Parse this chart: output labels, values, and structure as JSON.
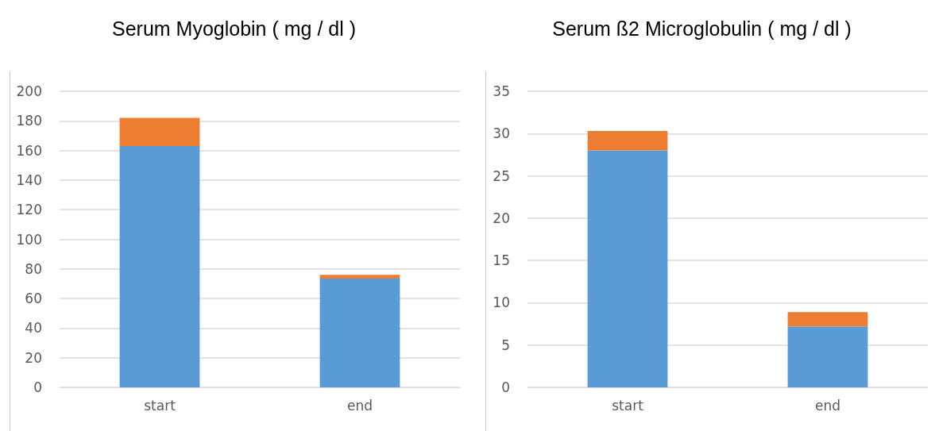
{
  "chart_data": [
    {
      "type": "bar",
      "title": "Serum Myoglobin ( mg / dl )",
      "categories": [
        "start",
        "end"
      ],
      "stacked": true,
      "grid": "y",
      "series": [
        {
          "color": "#5b9bd5",
          "values": [
            163,
            73.5
          ]
        },
        {
          "color": "#ed7d31",
          "values": [
            19,
            2.5
          ]
        }
      ],
      "ylim": [
        0,
        200
      ],
      "yticks": [
        0,
        20,
        40,
        60,
        80,
        100,
        120,
        140,
        160,
        180,
        200
      ]
    },
    {
      "type": "bar",
      "title": "Serum ß2 Microglobulin ( mg / dl )",
      "categories": [
        "start",
        "end"
      ],
      "stacked": true,
      "grid": "y",
      "series": [
        {
          "color": "#5b9bd5",
          "values": [
            28,
            7.2
          ]
        },
        {
          "color": "#ed7d31",
          "values": [
            2.3,
            1.7
          ]
        }
      ],
      "ylim": [
        0,
        35
      ],
      "yticks": [
        0,
        5,
        10,
        15,
        20,
        25,
        30,
        35
      ]
    }
  ]
}
